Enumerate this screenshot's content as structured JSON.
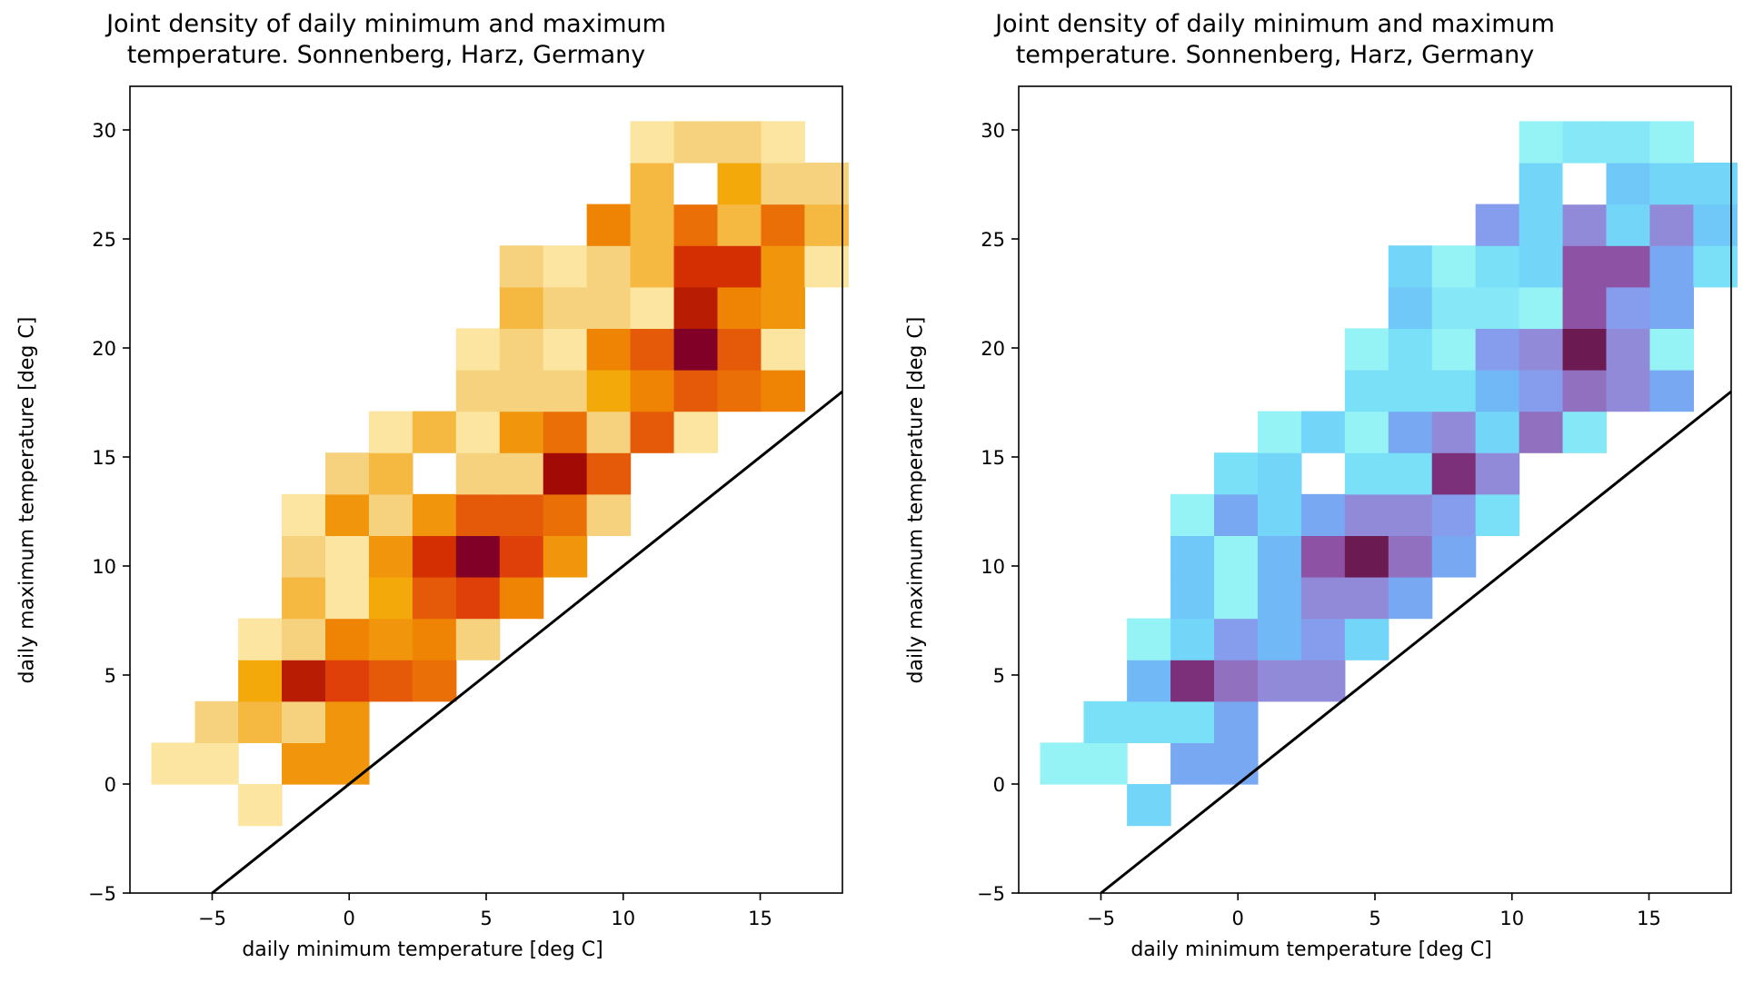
{
  "figure": {
    "background": "#ffffff",
    "line_color": "#000000"
  },
  "chart_data": [
    {
      "type": "heatmap",
      "name": "left",
      "title_line1": "Joint density of daily minimum and maximum",
      "title_line2": "temperature. Sonnenberg, Harz, Germany",
      "xlabel": "daily minimum temperature [deg C]",
      "ylabel": "daily maximum temperature [deg C]",
      "xlim": [
        -8,
        18
      ],
      "ylim": [
        -5,
        32
      ],
      "xticks": [
        -5,
        0,
        5,
        10,
        15
      ],
      "xtick_labels": [
        "−5",
        "0",
        "5",
        "10",
        "15"
      ],
      "yticks": [
        -5,
        0,
        5,
        10,
        15,
        20,
        25,
        30
      ],
      "ytick_labels": [
        "−5",
        "0",
        "5",
        "10",
        "15",
        "20",
        "25",
        "30"
      ],
      "reference_line": {
        "label": "y = x",
        "from": [
          -5,
          -5
        ],
        "to": [
          18,
          18
        ]
      },
      "colormap": "YlOrRd",
      "colors": [
        "#ffffff",
        "#fbe5a0",
        "#f7d27e",
        "#f5b840",
        "#f3a90a",
        "#f1960c",
        "#ef8303",
        "#ea6f06",
        "#e55a08",
        "#df400a",
        "#d32f02",
        "#b81d03",
        "#a20b05",
        "#800028"
      ],
      "x_edges": [
        -7.22,
        -5.63,
        -4.05,
        -2.46,
        -0.87,
        0.72,
        2.31,
        3.9,
        5.49,
        7.08,
        8.67,
        10.26,
        11.85,
        13.44,
        15.03,
        16.62,
        18.21
      ],
      "y_edges": [
        -1.9,
        0.0,
        1.9,
        3.8,
        5.7,
        7.6,
        9.5,
        11.4,
        13.3,
        15.2,
        17.1,
        19.0,
        20.9,
        22.8,
        24.7,
        26.6,
        28.5,
        30.4
      ],
      "cells": [
        [
          2,
          0,
          1
        ],
        [
          0,
          1,
          1
        ],
        [
          1,
          1,
          1
        ],
        [
          3,
          1,
          5
        ],
        [
          4,
          1,
          5
        ],
        [
          1,
          2,
          2
        ],
        [
          2,
          2,
          3
        ],
        [
          3,
          2,
          2
        ],
        [
          4,
          2,
          5
        ],
        [
          2,
          3,
          4
        ],
        [
          3,
          3,
          11
        ],
        [
          4,
          3,
          9
        ],
        [
          5,
          3,
          8
        ],
        [
          6,
          3,
          7
        ],
        [
          2,
          4,
          1
        ],
        [
          3,
          4,
          2
        ],
        [
          4,
          4,
          6
        ],
        [
          5,
          4,
          5
        ],
        [
          6,
          4,
          6
        ],
        [
          7,
          4,
          2
        ],
        [
          3,
          5,
          3
        ],
        [
          4,
          5,
          1
        ],
        [
          5,
          5,
          4
        ],
        [
          6,
          5,
          8
        ],
        [
          7,
          5,
          9
        ],
        [
          8,
          5,
          6
        ],
        [
          3,
          6,
          2
        ],
        [
          4,
          6,
          1
        ],
        [
          5,
          6,
          5
        ],
        [
          6,
          6,
          10
        ],
        [
          7,
          6,
          13
        ],
        [
          8,
          6,
          9
        ],
        [
          9,
          6,
          5
        ],
        [
          3,
          7,
          1
        ],
        [
          4,
          7,
          5
        ],
        [
          5,
          7,
          2
        ],
        [
          6,
          7,
          5
        ],
        [
          7,
          7,
          8
        ],
        [
          8,
          7,
          8
        ],
        [
          9,
          7,
          7
        ],
        [
          10,
          7,
          2
        ],
        [
          4,
          8,
          2
        ],
        [
          5,
          8,
          3
        ],
        [
          7,
          8,
          2
        ],
        [
          8,
          8,
          2
        ],
        [
          9,
          8,
          12
        ],
        [
          10,
          8,
          8
        ],
        [
          5,
          9,
          1
        ],
        [
          6,
          9,
          3
        ],
        [
          7,
          9,
          1
        ],
        [
          8,
          9,
          5
        ],
        [
          9,
          9,
          7
        ],
        [
          10,
          9,
          2
        ],
        [
          11,
          9,
          8
        ],
        [
          12,
          9,
          1
        ],
        [
          7,
          10,
          2
        ],
        [
          8,
          10,
          2
        ],
        [
          9,
          10,
          2
        ],
        [
          10,
          10,
          4
        ],
        [
          11,
          10,
          6
        ],
        [
          12,
          10,
          8
        ],
        [
          13,
          10,
          7
        ],
        [
          14,
          10,
          6
        ],
        [
          7,
          11,
          1
        ],
        [
          8,
          11,
          2
        ],
        [
          9,
          11,
          1
        ],
        [
          10,
          11,
          6
        ],
        [
          11,
          11,
          8
        ],
        [
          12,
          11,
          13
        ],
        [
          13,
          11,
          8
        ],
        [
          14,
          11,
          1
        ],
        [
          8,
          12,
          3
        ],
        [
          9,
          12,
          2
        ],
        [
          10,
          12,
          2
        ],
        [
          11,
          12,
          1
        ],
        [
          12,
          12,
          11
        ],
        [
          13,
          12,
          6
        ],
        [
          14,
          12,
          5
        ],
        [
          8,
          13,
          2
        ],
        [
          9,
          13,
          1
        ],
        [
          10,
          13,
          2
        ],
        [
          11,
          13,
          3
        ],
        [
          12,
          13,
          10
        ],
        [
          13,
          13,
          10
        ],
        [
          14,
          13,
          5
        ],
        [
          15,
          13,
          1
        ],
        [
          10,
          14,
          6
        ],
        [
          11,
          14,
          3
        ],
        [
          12,
          14,
          7
        ],
        [
          13,
          14,
          3
        ],
        [
          14,
          14,
          7
        ],
        [
          15,
          14,
          3
        ],
        [
          11,
          15,
          3
        ],
        [
          12,
          15,
          0
        ],
        [
          13,
          15,
          4
        ],
        [
          14,
          15,
          2
        ],
        [
          15,
          15,
          2
        ],
        [
          11,
          16,
          1
        ],
        [
          12,
          16,
          2
        ],
        [
          13,
          16,
          2
        ],
        [
          14,
          16,
          1
        ]
      ]
    },
    {
      "type": "heatmap",
      "name": "right",
      "title_line1": "Joint density of daily minimum and maximum",
      "title_line2": "temperature. Sonnenberg, Harz, Germany",
      "xlabel": "daily minimum temperature [deg C]",
      "ylabel": "daily maximum temperature [deg C]",
      "xlim": [
        -8,
        18
      ],
      "ylim": [
        -5,
        32
      ],
      "xticks": [
        -5,
        0,
        5,
        10,
        15
      ],
      "xtick_labels": [
        "−5",
        "0",
        "5",
        "10",
        "15"
      ],
      "yticks": [
        -5,
        0,
        5,
        10,
        15,
        20,
        25,
        30
      ],
      "ytick_labels": [
        "−5",
        "0",
        "5",
        "10",
        "15",
        "20",
        "25",
        "30"
      ],
      "reference_line": {
        "label": "y = x",
        "from": [
          -5,
          -5
        ],
        "to": [
          18,
          18
        ]
      },
      "colormap": "cyan-purple",
      "colors": [
        "#ffffff",
        "#95f2f5",
        "#86e8f7",
        "#7ae0f8",
        "#73d6f9",
        "#70c8f9",
        "#71b8f7",
        "#78a8f2",
        "#869cec",
        "#918ad8",
        "#9270c0",
        "#8e52a4",
        "#7b3079",
        "#6b1a52"
      ],
      "x_edges": [
        -7.22,
        -5.63,
        -4.05,
        -2.46,
        -0.87,
        0.72,
        2.31,
        3.9,
        5.49,
        7.08,
        8.67,
        10.26,
        11.85,
        13.44,
        15.03,
        16.62,
        18.21
      ],
      "y_edges": [
        -1.9,
        0.0,
        1.9,
        3.8,
        5.7,
        7.6,
        9.5,
        11.4,
        13.3,
        15.2,
        17.1,
        19.0,
        20.9,
        22.8,
        24.7,
        26.6,
        28.5,
        30.4
      ],
      "cells": [
        [
          2,
          0,
          4
        ],
        [
          0,
          1,
          1
        ],
        [
          1,
          1,
          1
        ],
        [
          3,
          1,
          7
        ],
        [
          4,
          1,
          7
        ],
        [
          1,
          2,
          3
        ],
        [
          2,
          2,
          3
        ],
        [
          3,
          2,
          3
        ],
        [
          4,
          2,
          7
        ],
        [
          2,
          3,
          6
        ],
        [
          3,
          3,
          12
        ],
        [
          4,
          3,
          10
        ],
        [
          5,
          3,
          9
        ],
        [
          6,
          3,
          9
        ],
        [
          2,
          4,
          1
        ],
        [
          3,
          4,
          4
        ],
        [
          4,
          4,
          8
        ],
        [
          5,
          4,
          6
        ],
        [
          6,
          4,
          8
        ],
        [
          7,
          4,
          4
        ],
        [
          3,
          5,
          5
        ],
        [
          4,
          5,
          1
        ],
        [
          5,
          5,
          6
        ],
        [
          6,
          5,
          9
        ],
        [
          7,
          5,
          9
        ],
        [
          8,
          5,
          7
        ],
        [
          3,
          6,
          5
        ],
        [
          4,
          6,
          1
        ],
        [
          5,
          6,
          6
        ],
        [
          6,
          6,
          11
        ],
        [
          7,
          6,
          13
        ],
        [
          8,
          6,
          10
        ],
        [
          9,
          6,
          7
        ],
        [
          3,
          7,
          1
        ],
        [
          4,
          7,
          7
        ],
        [
          5,
          7,
          4
        ],
        [
          6,
          7,
          7
        ],
        [
          7,
          7,
          9
        ],
        [
          8,
          7,
          9
        ],
        [
          9,
          7,
          8
        ],
        [
          10,
          7,
          3
        ],
        [
          4,
          8,
          3
        ],
        [
          5,
          8,
          4
        ],
        [
          7,
          8,
          3
        ],
        [
          8,
          8,
          3
        ],
        [
          9,
          8,
          12
        ],
        [
          10,
          8,
          9
        ],
        [
          5,
          9,
          1
        ],
        [
          6,
          9,
          4
        ],
        [
          7,
          9,
          1
        ],
        [
          8,
          9,
          7
        ],
        [
          9,
          9,
          9
        ],
        [
          10,
          9,
          4
        ],
        [
          11,
          9,
          10
        ],
        [
          12,
          9,
          2
        ],
        [
          7,
          10,
          3
        ],
        [
          8,
          10,
          3
        ],
        [
          9,
          10,
          3
        ],
        [
          10,
          10,
          6
        ],
        [
          11,
          10,
          8
        ],
        [
          12,
          10,
          10
        ],
        [
          13,
          10,
          9
        ],
        [
          14,
          10,
          7
        ],
        [
          7,
          11,
          1
        ],
        [
          8,
          11,
          3
        ],
        [
          9,
          11,
          1
        ],
        [
          10,
          11,
          8
        ],
        [
          11,
          11,
          9
        ],
        [
          12,
          11,
          13
        ],
        [
          13,
          11,
          9
        ],
        [
          14,
          11,
          1
        ],
        [
          8,
          12,
          5
        ],
        [
          9,
          12,
          2
        ],
        [
          10,
          12,
          2
        ],
        [
          11,
          12,
          1
        ],
        [
          12,
          12,
          11
        ],
        [
          13,
          12,
          8
        ],
        [
          14,
          12,
          7
        ],
        [
          8,
          13,
          4
        ],
        [
          9,
          13,
          1
        ],
        [
          10,
          13,
          3
        ],
        [
          11,
          13,
          4
        ],
        [
          12,
          13,
          11
        ],
        [
          13,
          13,
          11
        ],
        [
          14,
          13,
          7
        ],
        [
          15,
          13,
          3
        ],
        [
          10,
          14,
          8
        ],
        [
          11,
          14,
          4
        ],
        [
          12,
          14,
          9
        ],
        [
          13,
          14,
          4
        ],
        [
          14,
          14,
          9
        ],
        [
          15,
          14,
          5
        ],
        [
          11,
          15,
          4
        ],
        [
          12,
          15,
          0
        ],
        [
          13,
          15,
          5
        ],
        [
          14,
          15,
          4
        ],
        [
          15,
          15,
          4
        ],
        [
          11,
          16,
          1
        ],
        [
          12,
          16,
          2
        ],
        [
          13,
          16,
          2
        ],
        [
          14,
          16,
          1
        ]
      ]
    }
  ]
}
